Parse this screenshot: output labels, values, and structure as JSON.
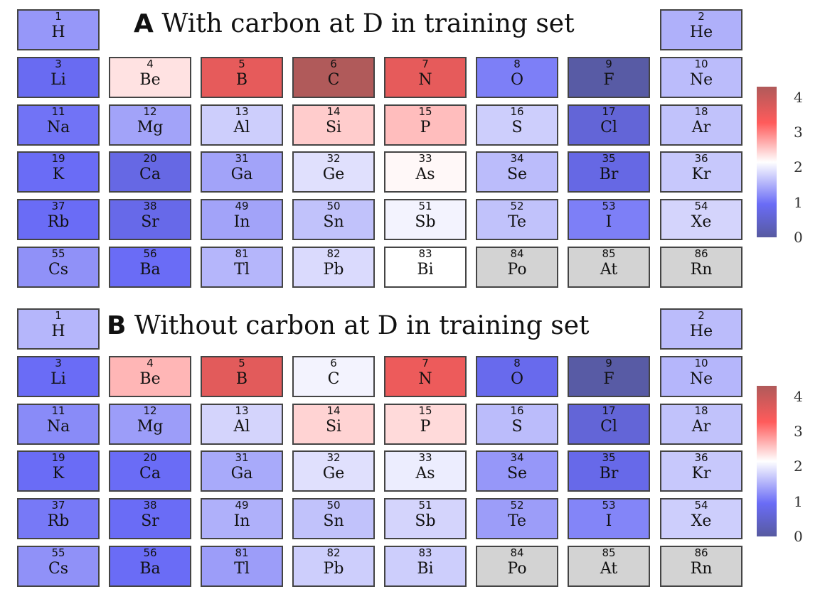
{
  "chart_data": [
    {
      "type": "heatmap",
      "panel_letter": "A",
      "title": "With carbon at D in training set",
      "colorbar": {
        "ticks": [
          4,
          3,
          2,
          1,
          0
        ],
        "range": [
          0,
          4.3
        ],
        "colors": [
          "#575aa0",
          "#6a6cf6",
          "#ffffff",
          "#ff5b5b",
          "#b05a5a"
        ]
      },
      "cells": [
        {
          "num": "1",
          "sym": "H",
          "value": 1.3
        },
        {
          "num": "2",
          "sym": "He",
          "value": 1.5
        },
        {
          "num": "3",
          "sym": "Li",
          "value": 0.9
        },
        {
          "num": "4",
          "sym": "Be",
          "value": 2.35
        },
        {
          "num": "5",
          "sym": "B",
          "value": 3.6
        },
        {
          "num": "6",
          "sym": "C",
          "value": 4.3
        },
        {
          "num": "7",
          "sym": "N",
          "value": 3.6
        },
        {
          "num": "8",
          "sym": "O",
          "value": 1.1
        },
        {
          "num": "9",
          "sym": "F",
          "value": 0.05
        },
        {
          "num": "10",
          "sym": "Ne",
          "value": 1.6
        },
        {
          "num": "11",
          "sym": "Na",
          "value": 1.0
        },
        {
          "num": "12",
          "sym": "Mg",
          "value": 1.4
        },
        {
          "num": "13",
          "sym": "Al",
          "value": 1.75
        },
        {
          "num": "14",
          "sym": "Si",
          "value": 2.5
        },
        {
          "num": "15",
          "sym": "P",
          "value": 2.6
        },
        {
          "num": "16",
          "sym": "S",
          "value": 1.75
        },
        {
          "num": "17",
          "sym": "Cl",
          "value": 0.6
        },
        {
          "num": "18",
          "sym": "Ar",
          "value": 1.65
        },
        {
          "num": "19",
          "sym": "K",
          "value": 0.95
        },
        {
          "num": "20",
          "sym": "Ca",
          "value": 0.75
        },
        {
          "num": "31",
          "sym": "Ga",
          "value": 1.4
        },
        {
          "num": "32",
          "sym": "Ge",
          "value": 1.9
        },
        {
          "num": "33",
          "sym": "As",
          "value": 2.2
        },
        {
          "num": "34",
          "sym": "Se",
          "value": 1.6
        },
        {
          "num": "35",
          "sym": "Br",
          "value": 0.75
        },
        {
          "num": "36",
          "sym": "Kr",
          "value": 1.7
        },
        {
          "num": "37",
          "sym": "Rb",
          "value": 0.95
        },
        {
          "num": "38",
          "sym": "Sr",
          "value": 0.8
        },
        {
          "num": "49",
          "sym": "In",
          "value": 1.4
        },
        {
          "num": "50",
          "sym": "Sn",
          "value": 1.65
        },
        {
          "num": "51",
          "sym": "Sb",
          "value": 2.05
        },
        {
          "num": "52",
          "sym": "Te",
          "value": 1.65
        },
        {
          "num": "53",
          "sym": "I",
          "value": 1.1
        },
        {
          "num": "54",
          "sym": "Xe",
          "value": 1.8
        },
        {
          "num": "55",
          "sym": "Cs",
          "value": 1.25
        },
        {
          "num": "56",
          "sym": "Ba",
          "value": 0.95
        },
        {
          "num": "81",
          "sym": "Tl",
          "value": 1.55
        },
        {
          "num": "82",
          "sym": "Pb",
          "value": 1.85
        },
        {
          "num": "83",
          "sym": "Bi",
          "value": 2.15
        },
        {
          "num": "84",
          "sym": "Po",
          "value": null
        },
        {
          "num": "85",
          "sym": "At",
          "value": null
        },
        {
          "num": "86",
          "sym": "Rn",
          "value": null
        }
      ]
    },
    {
      "type": "heatmap",
      "panel_letter": "B",
      "title": "Without carbon at D in training set",
      "colorbar": {
        "ticks": [
          4,
          3,
          2,
          1,
          0
        ],
        "range": [
          0,
          4.3
        ],
        "colors": [
          "#575aa0",
          "#6a6cf6",
          "#ffffff",
          "#ff5b5b",
          "#b05a5a"
        ]
      },
      "cells": [
        {
          "num": "1",
          "sym": "H",
          "value": 1.55
        },
        {
          "num": "2",
          "sym": "He",
          "value": 1.6
        },
        {
          "num": "3",
          "sym": "Li",
          "value": 0.95
        },
        {
          "num": "4",
          "sym": "Be",
          "value": 2.65
        },
        {
          "num": "5",
          "sym": "B",
          "value": 3.65
        },
        {
          "num": "6",
          "sym": "C",
          "value": 2.05
        },
        {
          "num": "7",
          "sym": "N",
          "value": 3.5
        },
        {
          "num": "8",
          "sym": "O",
          "value": 0.85
        },
        {
          "num": "9",
          "sym": "F",
          "value": 0.05
        },
        {
          "num": "10",
          "sym": "Ne",
          "value": 1.55
        },
        {
          "num": "11",
          "sym": "Na",
          "value": 1.2
        },
        {
          "num": "12",
          "sym": "Mg",
          "value": 1.35
        },
        {
          "num": "13",
          "sym": "Al",
          "value": 1.8
        },
        {
          "num": "14",
          "sym": "Si",
          "value": 2.45
        },
        {
          "num": "15",
          "sym": "P",
          "value": 2.4
        },
        {
          "num": "16",
          "sym": "S",
          "value": 1.6
        },
        {
          "num": "17",
          "sym": "Cl",
          "value": 0.6
        },
        {
          "num": "18",
          "sym": "Ar",
          "value": 1.65
        },
        {
          "num": "19",
          "sym": "K",
          "value": 0.95
        },
        {
          "num": "20",
          "sym": "Ca",
          "value": 0.95
        },
        {
          "num": "31",
          "sym": "Ga",
          "value": 1.45
        },
        {
          "num": "32",
          "sym": "Ge",
          "value": 1.9
        },
        {
          "num": "33",
          "sym": "As",
          "value": 2.0
        },
        {
          "num": "34",
          "sym": "Se",
          "value": 1.3
        },
        {
          "num": "35",
          "sym": "Br",
          "value": 0.8
        },
        {
          "num": "36",
          "sym": "Kr",
          "value": 1.7
        },
        {
          "num": "37",
          "sym": "Rb",
          "value": 1.05
        },
        {
          "num": "38",
          "sym": "Sr",
          "value": 0.95
        },
        {
          "num": "49",
          "sym": "In",
          "value": 1.5
        },
        {
          "num": "50",
          "sym": "Sn",
          "value": 1.65
        },
        {
          "num": "51",
          "sym": "Sb",
          "value": 1.8
        },
        {
          "num": "52",
          "sym": "Te",
          "value": 1.35
        },
        {
          "num": "53",
          "sym": "I",
          "value": 1.15
        },
        {
          "num": "54",
          "sym": "Xe",
          "value": 1.75
        },
        {
          "num": "55",
          "sym": "Cs",
          "value": 1.25
        },
        {
          "num": "56",
          "sym": "Ba",
          "value": 0.95
        },
        {
          "num": "81",
          "sym": "Tl",
          "value": 1.35
        },
        {
          "num": "82",
          "sym": "Pb",
          "value": 1.75
        },
        {
          "num": "83",
          "sym": "Bi",
          "value": 1.75
        },
        {
          "num": "84",
          "sym": "Po",
          "value": null
        },
        {
          "num": "85",
          "sym": "At",
          "value": null
        },
        {
          "num": "86",
          "sym": "Rn",
          "value": null
        }
      ]
    }
  ],
  "colors": {
    "missing": "#d3d3d3",
    "low": "#575aa0",
    "mid_low": "#6a6cf6",
    "mid": "#ffffff",
    "mid_high": "#ff5b5b",
    "high": "#b05a5a"
  }
}
